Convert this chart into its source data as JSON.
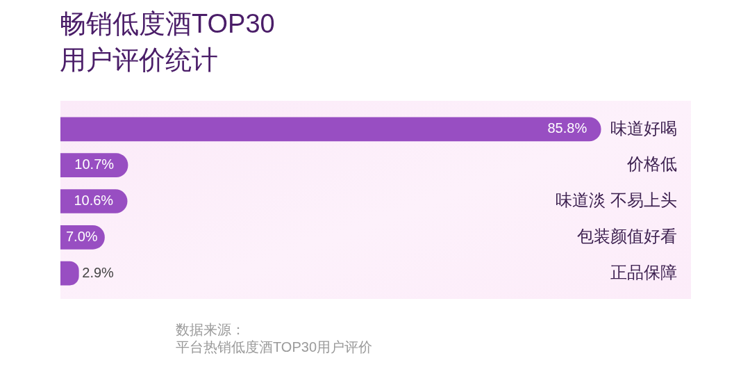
{
  "chart_data": {
    "type": "bar",
    "orientation": "horizontal",
    "title": "畅销低度酒TOP30\n用户评价统计",
    "categories": [
      "味道好喝",
      "价格低",
      "味道淡 不易上头",
      "包装颜值好看",
      "正品保障"
    ],
    "values": [
      85.8,
      10.7,
      10.6,
      7.0,
      2.9
    ],
    "color": "#984ec2",
    "value_labels": [
      "85.8%",
      "10.7%",
      "10.6%",
      "7.0%",
      "2.9%"
    ],
    "xlim": [
      0,
      100
    ],
    "tick_labels": "y",
    "annotations": [
      "数据来源：",
      "平台热销低度酒TOP30用户评价"
    ]
  }
}
